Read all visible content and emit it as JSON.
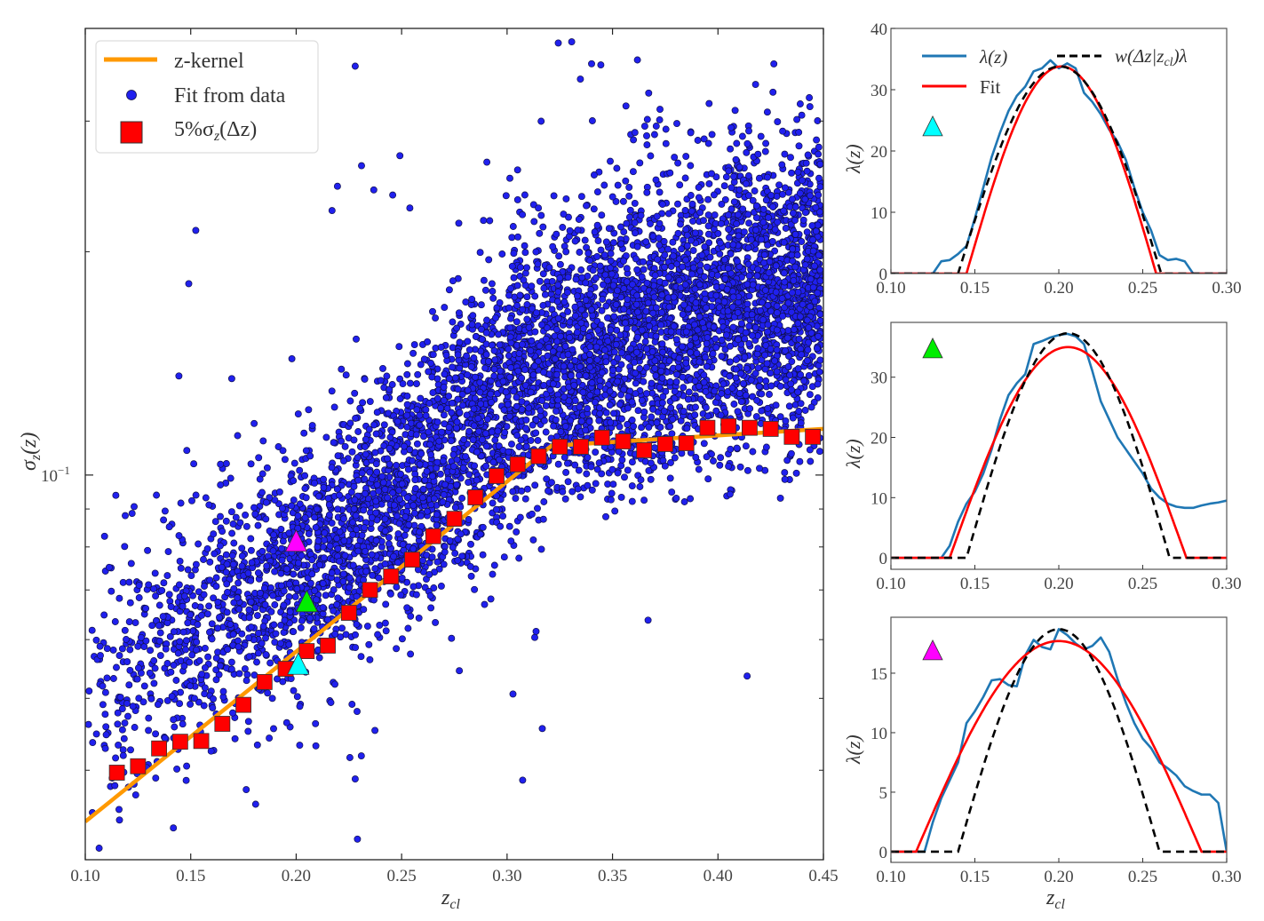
{
  "chart_data": [
    {
      "type": "scatter",
      "title": "",
      "xlabel": {
        "main": "z",
        "sub": "cl"
      },
      "ylabel": {
        "main": "σ",
        "sub": "z",
        "rest": "(z)"
      },
      "xlim": [
        0.1,
        0.45
      ],
      "ylim": [
        0.0303,
        0.4
      ],
      "yscale": "log",
      "xticks": [
        0.1,
        0.15,
        0.2,
        0.25,
        0.3,
        0.35,
        0.4,
        0.45
      ],
      "xtick_labels": [
        "0.10",
        "0.15",
        "0.20",
        "0.25",
        "0.30",
        "0.35",
        "0.40",
        "0.45"
      ],
      "ytick_major": {
        "value": 0.1,
        "base": "10",
        "exp": "−1"
      },
      "ytick_minor": [
        0.04,
        0.05,
        0.06,
        0.07,
        0.08,
        0.09,
        0.2,
        0.3,
        0.4
      ],
      "legend": {
        "placement": "top-left",
        "entries": [
          {
            "label": "z-kernel"
          },
          {
            "label": "Fit from data"
          },
          {
            "label_main": "5%σ",
            "label_sub": "z",
            "label_rest": "(Δz)"
          }
        ]
      },
      "series": [
        {
          "name": "Fit from data",
          "type": "scatter",
          "color": "#2020ee",
          "edge": "#10104a",
          "n_points": 6000,
          "seed": 7,
          "median_curve": {
            "x": [
              0.1,
              0.15,
              0.2,
              0.25,
              0.3,
              0.35,
              0.4,
              0.45
            ],
            "y": [
              0.052,
              0.062,
              0.074,
              0.094,
              0.13,
              0.152,
              0.168,
              0.178
            ]
          },
          "scatter_dex": 0.085,
          "outlier_fraction": 0.03
        },
        {
          "name": "z-kernel",
          "type": "line",
          "color": "#ff9900",
          "x": [
            0.1,
            0.321,
            0.45
          ],
          "y": [
            0.0341,
            0.1095,
            0.1154
          ]
        },
        {
          "name": "5%σz(Δz)",
          "type": "scatter",
          "marker": "square",
          "color": "#ff0000",
          "x": [
            0.115,
            0.125,
            0.135,
            0.145,
            0.155,
            0.165,
            0.175,
            0.185,
            0.195,
            0.205,
            0.215,
            0.225,
            0.235,
            0.245,
            0.255,
            0.265,
            0.275,
            0.285,
            0.295,
            0.305,
            0.315,
            0.325,
            0.335,
            0.345,
            0.355,
            0.365,
            0.375,
            0.385,
            0.395,
            0.405,
            0.415,
            0.425,
            0.435,
            0.445
          ],
          "y": [
            0.0397,
            0.0405,
            0.0428,
            0.0437,
            0.0438,
            0.0462,
            0.049,
            0.0526,
            0.0548,
            0.0579,
            0.0589,
            0.0652,
            0.07,
            0.073,
            0.0769,
            0.0827,
            0.0873,
            0.0933,
            0.0997,
            0.1034,
            0.106,
            0.1092,
            0.1092,
            0.1123,
            0.111,
            0.108,
            0.1101,
            0.1104,
            0.1158,
            0.1164,
            0.1158,
            0.1154,
            0.1126,
            0.1126
          ]
        }
      ],
      "highlighted": [
        {
          "marker": "triangle",
          "color": "#ff00ff",
          "x": 0.2,
          "y": 0.0813
        },
        {
          "marker": "triangle",
          "color": "#00ee00",
          "x": 0.205,
          "y": 0.0674
        },
        {
          "marker": "triangle",
          "color": "#00ffff",
          "x": 0.201,
          "y": 0.0555
        }
      ]
    },
    {
      "type": "line",
      "marker_color": "#00ffff",
      "xlim": [
        0.1,
        0.3
      ],
      "ylim": [
        0,
        40
      ],
      "xticks": [
        0.1,
        0.15,
        0.2,
        0.25,
        0.3
      ],
      "xtick_labels": [
        "0.10",
        "0.15",
        "0.20",
        "0.25",
        "0.30"
      ],
      "yticks": [
        0,
        10,
        20,
        30,
        40
      ],
      "ylabel": "λ(z)",
      "legend": {
        "placement": "top",
        "entries": [
          {
            "label": "λ(z)"
          },
          {
            "label": "Fit"
          },
          {
            "label_main": "w(Δz|z",
            "label_sub": "cl",
            "label_rest": ")λ"
          }
        ]
      },
      "lambda": {
        "color": "#1f77b4",
        "x_start": 0.1,
        "x_step": 0.005,
        "y": [
          0,
          0,
          0,
          0,
          0,
          0,
          2,
          2.2,
          3.2,
          4.5,
          9,
          14,
          19,
          23,
          26.5,
          29,
          30.5,
          33,
          33.5,
          34.8,
          33.5,
          34.3,
          33.5,
          29.5,
          28,
          26,
          23.5,
          21.5,
          18.5,
          14,
          10,
          7,
          3,
          2.2,
          2.4,
          2,
          0,
          0,
          0,
          0,
          0
        ]
      },
      "fit": {
        "color": "#ff0000",
        "center": 0.2015,
        "halfwidth": 0.0565,
        "peak": 33.8
      },
      "kernel": {
        "color": "#000000",
        "center": 0.2005,
        "halfwidth": 0.0605,
        "peak": 33.8
      }
    },
    {
      "type": "line",
      "marker_color": "#00ee00",
      "xlim": [
        0.1,
        0.3
      ],
      "ylim": [
        -1.9,
        39.1
      ],
      "xticks": [
        0.1,
        0.15,
        0.2,
        0.25,
        0.3
      ],
      "xtick_labels": [
        "0.10",
        "0.15",
        "0.20",
        "0.25",
        "0.30"
      ],
      "yticks": [
        0,
        10,
        20,
        30
      ],
      "ylabel": "λ(z)",
      "lambda": {
        "color": "#1f77b4",
        "x_start": 0.1,
        "x_step": 0.005,
        "y": [
          0,
          0,
          0,
          0,
          0,
          0,
          0,
          2,
          6,
          9,
          11,
          14,
          18,
          23,
          27,
          29,
          30.5,
          35.5,
          36,
          36.6,
          37,
          37.2,
          36.8,
          35.5,
          31,
          26,
          23,
          20,
          18,
          16,
          14,
          11.5,
          10,
          9,
          8.5,
          8.3,
          8.3,
          8.7,
          9,
          9.2,
          9.5
        ]
      },
      "fit": {
        "color": "#ff0000",
        "center": 0.2055,
        "halfwidth": 0.0705,
        "peak": 35.0
      },
      "kernel": {
        "color": "#000000",
        "center": 0.2055,
        "halfwidth": 0.0605,
        "peak": 37.3
      }
    },
    {
      "type": "line",
      "marker_color": "#ff00ff",
      "xlim": [
        0.1,
        0.3
      ],
      "ylim": [
        -0.9,
        19.7
      ],
      "xticks": [
        0.1,
        0.15,
        0.2,
        0.25,
        0.3
      ],
      "xtick_labels": [
        "0.10",
        "0.15",
        "0.20",
        "0.25",
        "0.30"
      ],
      "yticks": [
        0,
        5,
        10,
        15
      ],
      "ylabel": "λ(z)",
      "xlabel": {
        "main": "z",
        "sub": "cl"
      },
      "lambda": {
        "color": "#1f77b4",
        "x_start": 0.1,
        "x_step": 0.005,
        "y": [
          0,
          0,
          0,
          0,
          0,
          2.5,
          4.5,
          6,
          7.5,
          10.8,
          11.8,
          13,
          14.4,
          14.5,
          14,
          13.9,
          16.5,
          17.8,
          17.2,
          17,
          18.7,
          18.2,
          17.5,
          17,
          17.3,
          18,
          16.8,
          14.5,
          12.5,
          10.8,
          9.5,
          8.7,
          7.5,
          7,
          6.4,
          5.5,
          5.1,
          4.8,
          4.8,
          4.1,
          0
        ]
      },
      "fit": {
        "color": "#ff0000",
        "center": 0.2,
        "halfwidth": 0.085,
        "peak": 17.7
      },
      "kernel": {
        "color": "#000000",
        "center": 0.2,
        "halfwidth": 0.06,
        "peak": 18.7
      }
    }
  ]
}
